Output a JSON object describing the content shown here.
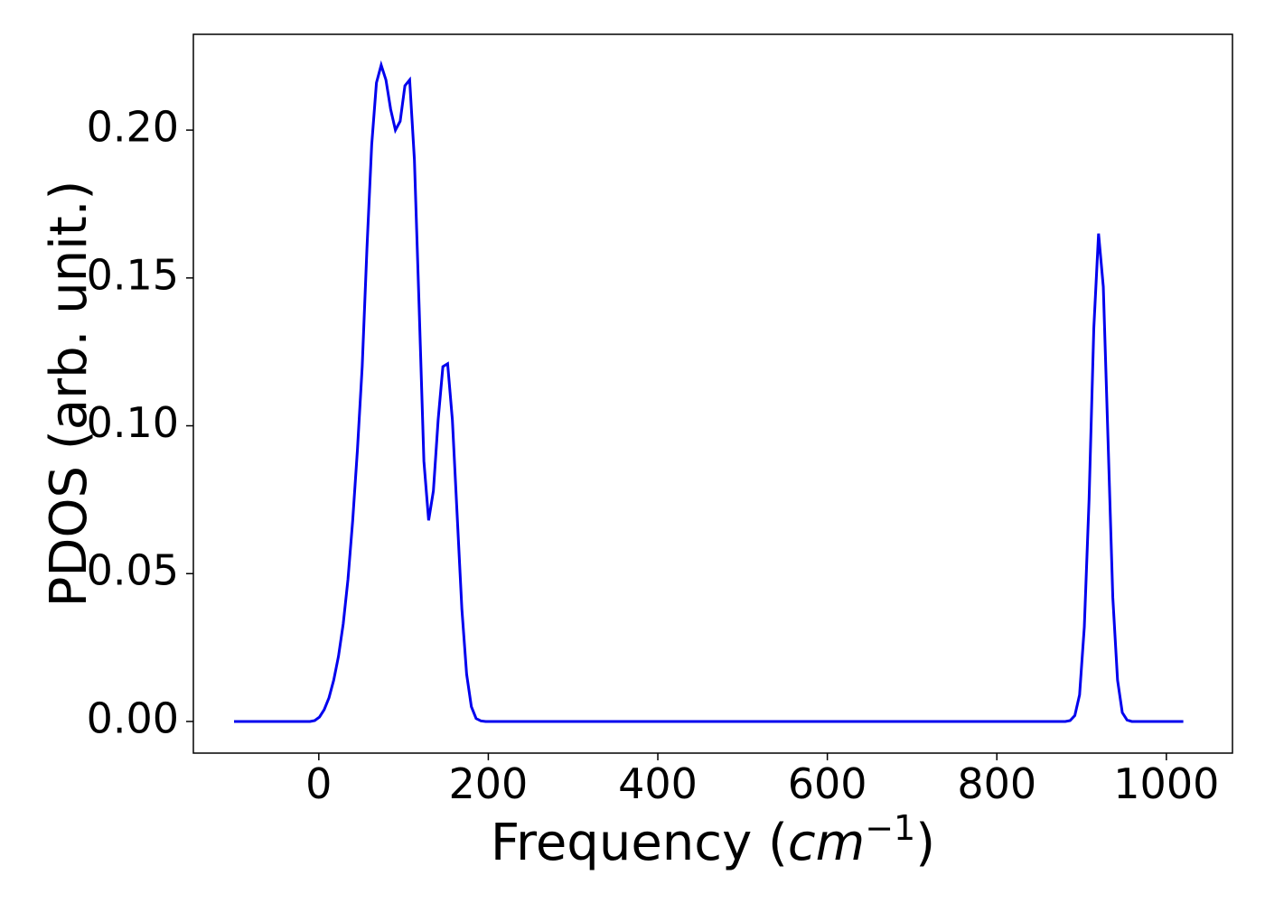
{
  "chart_data": {
    "type": "line",
    "ylabel": "PDOS (arb. unit.)",
    "xlabel": [
      "Frequency (",
      "cm",
      "−1",
      ")"
    ],
    "x": [
      -100,
      -10.4,
      -4.8,
      0.8,
      6.4,
      12.0,
      17.6,
      23.2,
      28.8,
      34.4,
      40.0,
      45.6,
      51.2,
      56.8,
      62.4,
      68.0,
      73.6,
      79.2,
      84.8,
      90.4,
      96.0,
      101.6,
      107.2,
      112.8,
      118.4,
      124.0,
      129.6,
      135.2,
      140.8,
      146.4,
      152.0,
      157.6,
      163.2,
      168.8,
      174.4,
      180.0,
      185.6,
      191.2,
      196.8,
      880.8,
      886.4,
      892.0,
      897.6,
      903.2,
      908.8,
      914.4,
      920.0,
      925.6,
      931.2,
      936.8,
      942.4,
      948.0,
      953.6,
      959.2,
      1020
    ],
    "series": [
      {
        "name": "PDOS",
        "color": "#0000ee",
        "values": [
          0,
          0,
          0.0003,
          0.0015,
          0.004,
          0.008,
          0.014,
          0.022,
          0.033,
          0.048,
          0.068,
          0.092,
          0.12,
          0.16,
          0.195,
          0.216,
          0.222,
          0.217,
          0.207,
          0.2,
          0.203,
          0.215,
          0.217,
          0.19,
          0.14,
          0.088,
          0.068,
          0.078,
          0.102,
          0.12,
          0.121,
          0.102,
          0.07,
          0.038,
          0.016,
          0.005,
          0.001,
          0.0002,
          0,
          0,
          0.0003,
          0.002,
          0.009,
          0.032,
          0.075,
          0.133,
          0.165,
          0.147,
          0.095,
          0.042,
          0.014,
          0.003,
          0.0005,
          0,
          0
        ]
      }
    ],
    "xlim": [
      -148,
      1078
    ],
    "ylim": [
      -0.0107,
      0.2324
    ],
    "xticks": [
      0,
      200,
      400,
      600,
      800,
      1000
    ],
    "yticks": [
      {
        "value": 0,
        "label": "0.00"
      },
      0.05,
      {
        "value": 0.1,
        "label": "0.10"
      },
      0.15,
      {
        "value": 0.2,
        "label": "0.20"
      }
    ],
    "grid": false
  }
}
